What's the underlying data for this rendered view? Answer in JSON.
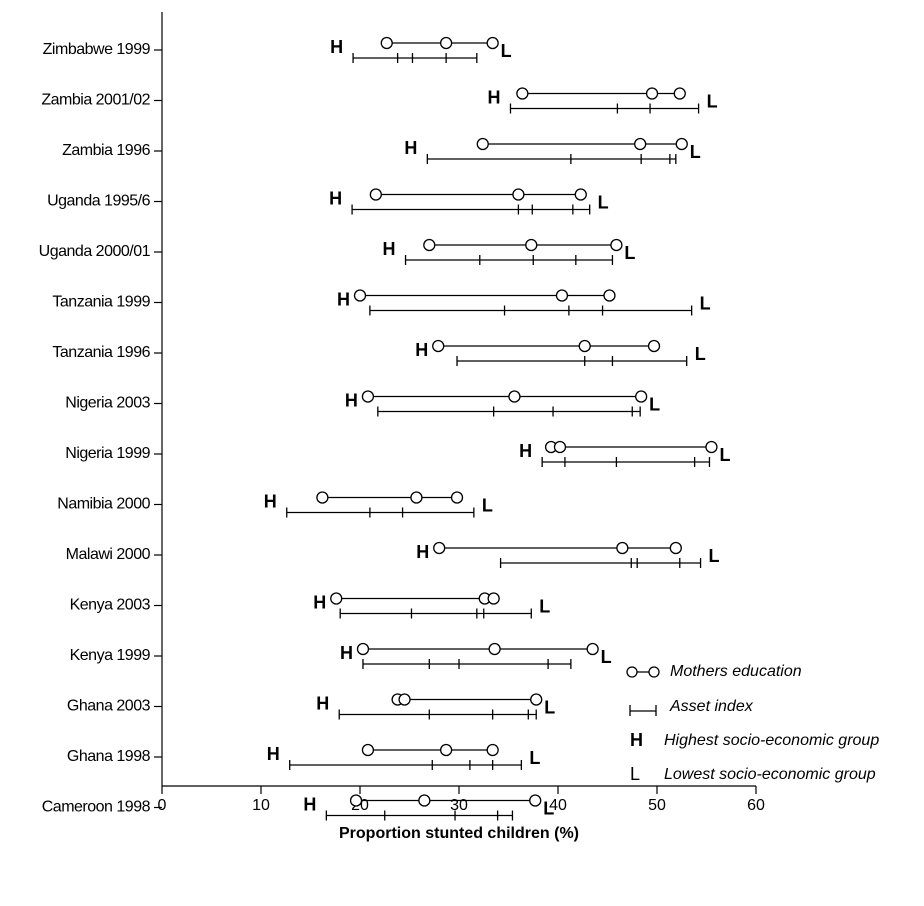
{
  "chart_data": {
    "type": "range-dot",
    "xlabel": "Proportion stunted children (%)",
    "xlim": [
      0,
      60
    ],
    "xticks": [
      0,
      10,
      20,
      30,
      40,
      50,
      60
    ],
    "categories": [
      "Zimbabwe 1999",
      "Zambia 2001/02",
      "Zambia 1996",
      "Uganda 1995/6",
      "Uganda 2000/01",
      "Tanzania 1999",
      "Tanzania 1996",
      "Nigeria 2003",
      "Nigeria 1999",
      "Namibia 2000",
      "Malawi 2000",
      "Kenya 2003",
      "Kenya 1999",
      "Ghana 2003",
      "Ghana 1998",
      "Cameroon 1998"
    ],
    "series": [
      {
        "name": "Mothers education",
        "color": "#000000",
        "values": [
          [
            22.7,
            28.7,
            33.4
          ],
          [
            36.4,
            49.5,
            52.3
          ],
          [
            32.4,
            48.3,
            52.5
          ],
          [
            21.6,
            36.0,
            42.3
          ],
          [
            27.0,
            37.3,
            45.9
          ],
          [
            20.0,
            40.4,
            45.2
          ],
          [
            27.9,
            42.7,
            49.7
          ],
          [
            20.8,
            35.6,
            48.4
          ],
          [
            39.3,
            40.2,
            55.5
          ],
          [
            16.2,
            25.7,
            29.8
          ],
          [
            28.0,
            46.5,
            51.9
          ],
          [
            17.6,
            32.6,
            33.5
          ],
          [
            20.3,
            33.6,
            43.5
          ],
          [
            23.8,
            24.5,
            37.8
          ],
          [
            20.8,
            28.7,
            33.4
          ],
          [
            19.6,
            26.5,
            37.7
          ]
        ]
      },
      {
        "name": "Asset index",
        "color": "#000000",
        "values": [
          [
            19.3,
            23.8,
            25.3,
            28.7,
            31.8
          ],
          [
            35.2,
            46.0,
            49.3,
            54.2
          ],
          [
            26.8,
            41.3,
            48.4,
            51.3,
            51.9
          ],
          [
            19.2,
            36.0,
            37.4,
            41.5,
            43.2
          ],
          [
            24.6,
            32.1,
            37.5,
            41.8,
            45.5
          ],
          [
            21.0,
            34.6,
            41.1,
            44.5,
            53.5
          ],
          [
            29.8,
            42.7,
            45.5,
            53.0
          ],
          [
            21.8,
            33.5,
            39.5,
            47.5,
            48.3
          ],
          [
            38.4,
            40.7,
            45.9,
            53.8,
            55.3
          ],
          [
            12.6,
            21.0,
            24.3,
            31.5
          ],
          [
            34.2,
            47.4,
            48.0,
            52.3,
            54.4
          ],
          [
            18.0,
            25.2,
            31.8,
            32.5,
            37.3
          ],
          [
            20.3,
            27.0,
            30.0,
            39.0,
            41.3
          ],
          [
            17.9,
            27.0,
            33.4,
            37.0,
            37.8
          ],
          [
            12.9,
            27.3,
            31.1,
            33.4,
            36.3
          ],
          [
            16.6,
            22.5,
            29.6,
            33.9,
            35.4
          ]
        ]
      }
    ],
    "markers": [
      {
        "symbol": "H",
        "label": "Highest socio-economic group"
      },
      {
        "symbol": "L",
        "label": "Lowest socio-economic group"
      }
    ]
  }
}
